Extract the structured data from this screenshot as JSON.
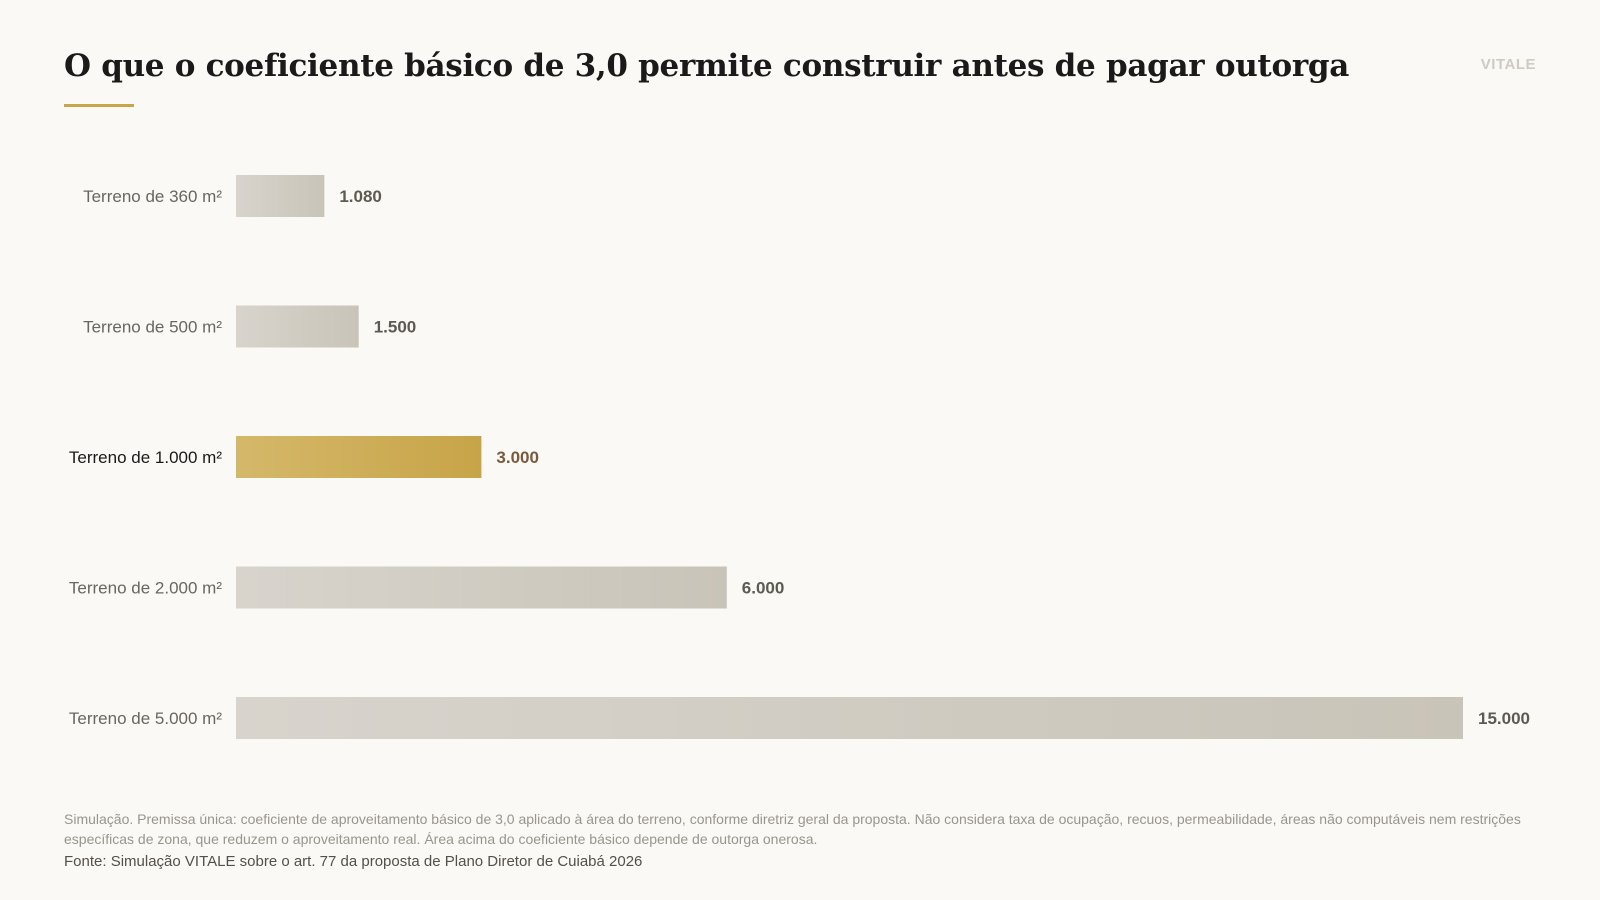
{
  "header": {
    "title": "O que o coeficiente básico de 3,0 permite construir antes de pagar outorga",
    "brand": "VITALE"
  },
  "chart_data": {
    "type": "bar",
    "orientation": "horizontal",
    "categories": [
      "Terreno de 360 m²",
      "Terreno de 500 m²",
      "Terreno de 1.000 m²",
      "Terreno de 2.000 m²",
      "Terreno de 5.000 m²"
    ],
    "values": [
      1080,
      1500,
      3000,
      6000,
      15000
    ],
    "value_labels": [
      "1.080",
      "1.500",
      "3.000",
      "6.000",
      "15.000"
    ],
    "highlight_index": 2,
    "xlim": [
      0,
      15000
    ],
    "grid": false,
    "legend": "none",
    "colors": {
      "bar": "#d2cdc4",
      "bar_highlight": "#c9a54a",
      "label": "#6b665e",
      "label_highlight": "#1a1a1a",
      "value": "#5e5a52",
      "value_highlight": "#7a5a3a"
    }
  },
  "footer": {
    "note": "Simulação. Premissa única: coeficiente de aproveitamento básico de 3,0 aplicado à área do terreno, conforme diretriz geral da proposta. Não considera taxa de ocupação, recuos, permeabilidade, áreas não computáveis nem restrições específicas de zona, que reduzem o aproveitamento real. Área acima do coeficiente básico depende de outorga onerosa.",
    "source": "Fonte: Simulação VITALE sobre o art. 77 da proposta de Plano Diretor de Cuiabá 2026"
  },
  "colors": {
    "background": "#faf9f6",
    "accent": "#c9a54a"
  }
}
